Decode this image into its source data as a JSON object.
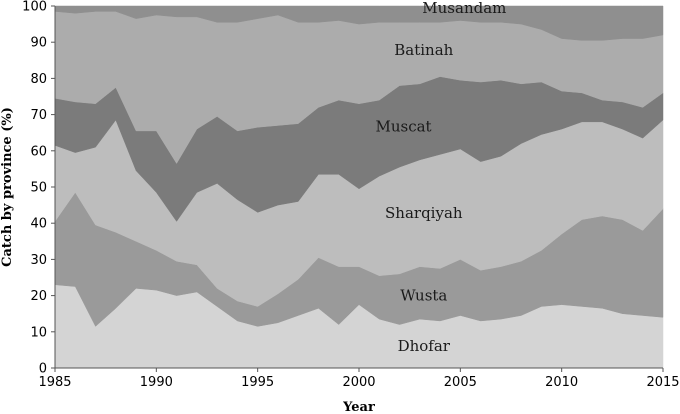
{
  "chart_data": {
    "type": "area",
    "stacked": true,
    "xlabel": "Year",
    "ylabel": "Catch by province (%)",
    "xlim": [
      1985,
      2015
    ],
    "ylim": [
      0,
      100
    ],
    "xticks": [
      "1985",
      "1990",
      "1995",
      "2000",
      "2005",
      "2010",
      "2015"
    ],
    "yticks": [
      "0",
      "10",
      "20",
      "30",
      "40",
      "50",
      "60",
      "70",
      "80",
      "90",
      "100"
    ],
    "x": [
      1985,
      1986,
      1987,
      1988,
      1989,
      1990,
      1991,
      1992,
      1993,
      1994,
      1995,
      1996,
      1997,
      1998,
      1999,
      2000,
      2001,
      2002,
      2003,
      2004,
      2005,
      2006,
      2007,
      2008,
      2009,
      2010,
      2011,
      2012,
      2013,
      2014,
      2015
    ],
    "series": [
      {
        "name": "Dhofar",
        "color": "#d4d4d4",
        "values": [
          23,
          22.5,
          11.5,
          16.5,
          22,
          21.5,
          20,
          21,
          17,
          13,
          11.5,
          12.5,
          14.5,
          16.5,
          12,
          17.5,
          13.5,
          12,
          13.5,
          13,
          14.5,
          13,
          13.5,
          14.5,
          17,
          17.5,
          17,
          16.5,
          15,
          14.5,
          14
        ]
      },
      {
        "name": "Wusta",
        "color": "#9a9a9a",
        "values": [
          17.5,
          26,
          28,
          21,
          13,
          11,
          9.5,
          7.5,
          5,
          5.5,
          5.5,
          8,
          10,
          14,
          16,
          10.5,
          12,
          14,
          14.5,
          14.5,
          15.5,
          14,
          14.5,
          15,
          15.5,
          19.5,
          24,
          25.5,
          26,
          23.5,
          30
        ]
      },
      {
        "name": "Sharqiyah",
        "color": "#bdbdbd",
        "values": [
          21,
          11,
          21.5,
          31,
          19.5,
          16,
          11,
          20,
          29,
          28,
          26,
          24.5,
          21.5,
          23,
          25.5,
          21.5,
          27.5,
          29.5,
          29.5,
          31.5,
          30.5,
          30,
          30.5,
          32.5,
          32,
          29,
          27,
          26,
          25,
          25.5,
          24.5
        ]
      },
      {
        "name": "Muscat",
        "color": "#7b7b7b",
        "values": [
          13,
          14,
          12,
          9,
          11,
          17,
          16,
          17.5,
          18.5,
          19,
          23.5,
          22,
          21.5,
          18.5,
          20.5,
          23.5,
          21,
          22.5,
          21,
          21.5,
          19,
          22,
          21,
          16.5,
          14.5,
          10.5,
          8,
          6,
          7.5,
          8.5,
          7.5
        ]
      },
      {
        "name": "Batinah",
        "color": "#acacac",
        "values": [
          24,
          24.5,
          25.5,
          21,
          31,
          32,
          40.5,
          31,
          26,
          30,
          30,
          30.5,
          28,
          23.5,
          22,
          22,
          21.5,
          17.5,
          17,
          15,
          16.5,
          16.5,
          16,
          16.5,
          14.5,
          14.5,
          14.5,
          16.5,
          17.5,
          19,
          16
        ]
      },
      {
        "name": "Musandam",
        "color": "#8f8f8f",
        "values": [
          1.5,
          2,
          1.5,
          1.5,
          3.5,
          2.5,
          3,
          3,
          4.5,
          4.5,
          3.5,
          2.5,
          4.5,
          4.5,
          4,
          5,
          4.5,
          4.5,
          4.5,
          4.5,
          4,
          4.5,
          4.5,
          5,
          6.5,
          9,
          9.5,
          9.5,
          9,
          9,
          8
        ]
      }
    ],
    "labels": [
      "Musandam",
      "Batinah",
      "Muscat",
      "Sharqiyah",
      "Wusta",
      "Dhofar"
    ]
  }
}
